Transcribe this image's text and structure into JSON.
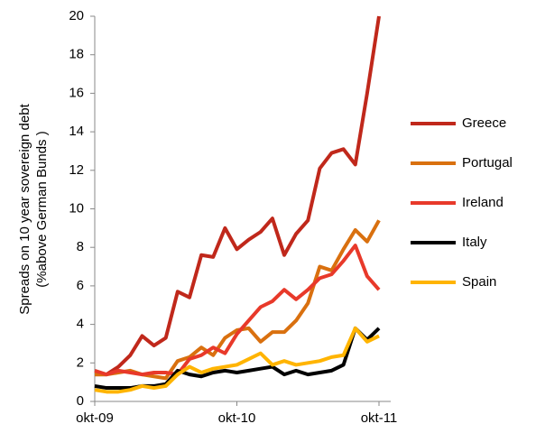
{
  "chart_data": {
    "type": "line",
    "y_label": [
      "Spreads on 10 year sovereign debt",
      "(%above German Bunds )"
    ],
    "categories": [
      "okt-09",
      null,
      null,
      null,
      null,
      null,
      null,
      null,
      null,
      null,
      null,
      null,
      "okt-10",
      null,
      null,
      null,
      null,
      null,
      null,
      null,
      null,
      null,
      null,
      null,
      "okt-11"
    ],
    "series": [
      {
        "name": "Greece",
        "color": "#c0281b",
        "values": [
          1.4,
          1.4,
          1.8,
          2.4,
          3.4,
          2.9,
          3.3,
          5.7,
          5.4,
          7.6,
          7.5,
          9.0,
          7.9,
          8.4,
          8.8,
          9.5,
          7.6,
          8.7,
          9.4,
          12.1,
          12.9,
          13.1,
          12.3,
          16,
          20
        ]
      },
      {
        "name": "Portugal",
        "color": "#d9700f",
        "values": [
          1.4,
          1.4,
          1.5,
          1.6,
          1.4,
          1.3,
          1.2,
          2.1,
          2.3,
          2.8,
          2.4,
          3.3,
          3.7,
          3.8,
          3.1,
          3.6,
          3.6,
          4.2,
          5.1,
          7.0,
          6.8,
          7.9,
          8.9,
          8.3,
          9.4
        ]
      },
      {
        "name": "Ireland",
        "color": "#e8392a",
        "values": [
          1.6,
          1.4,
          1.6,
          1.5,
          1.4,
          1.5,
          1.5,
          1.4,
          2.2,
          2.4,
          2.8,
          2.5,
          3.5,
          4.2,
          4.9,
          5.2,
          5.8,
          5.3,
          5.8,
          6.4,
          6.6,
          7.3,
          8.1,
          6.5,
          5.8
        ]
      },
      {
        "name": "Italy",
        "color": "#000000",
        "values": [
          0.8,
          0.7,
          0.7,
          0.7,
          0.8,
          0.8,
          0.9,
          1.6,
          1.4,
          1.3,
          1.5,
          1.6,
          1.5,
          1.6,
          1.7,
          1.8,
          1.4,
          1.6,
          1.4,
          1.5,
          1.6,
          1.9,
          3.8,
          3.2,
          3.8
        ]
      },
      {
        "name": "Spain",
        "color": "#ffb400",
        "values": [
          0.6,
          0.5,
          0.5,
          0.6,
          0.8,
          0.7,
          0.8,
          1.4,
          1.8,
          1.5,
          1.7,
          1.8,
          1.9,
          2.2,
          2.5,
          1.9,
          2.1,
          1.9,
          2.0,
          2.1,
          2.3,
          2.4,
          3.8,
          3.1,
          3.4
        ]
      }
    ],
    "ylim": [
      0,
      20
    ],
    "yticks": [
      0,
      2,
      4,
      6,
      8,
      10,
      12,
      14,
      16,
      18,
      20
    ],
    "legend": "right"
  }
}
